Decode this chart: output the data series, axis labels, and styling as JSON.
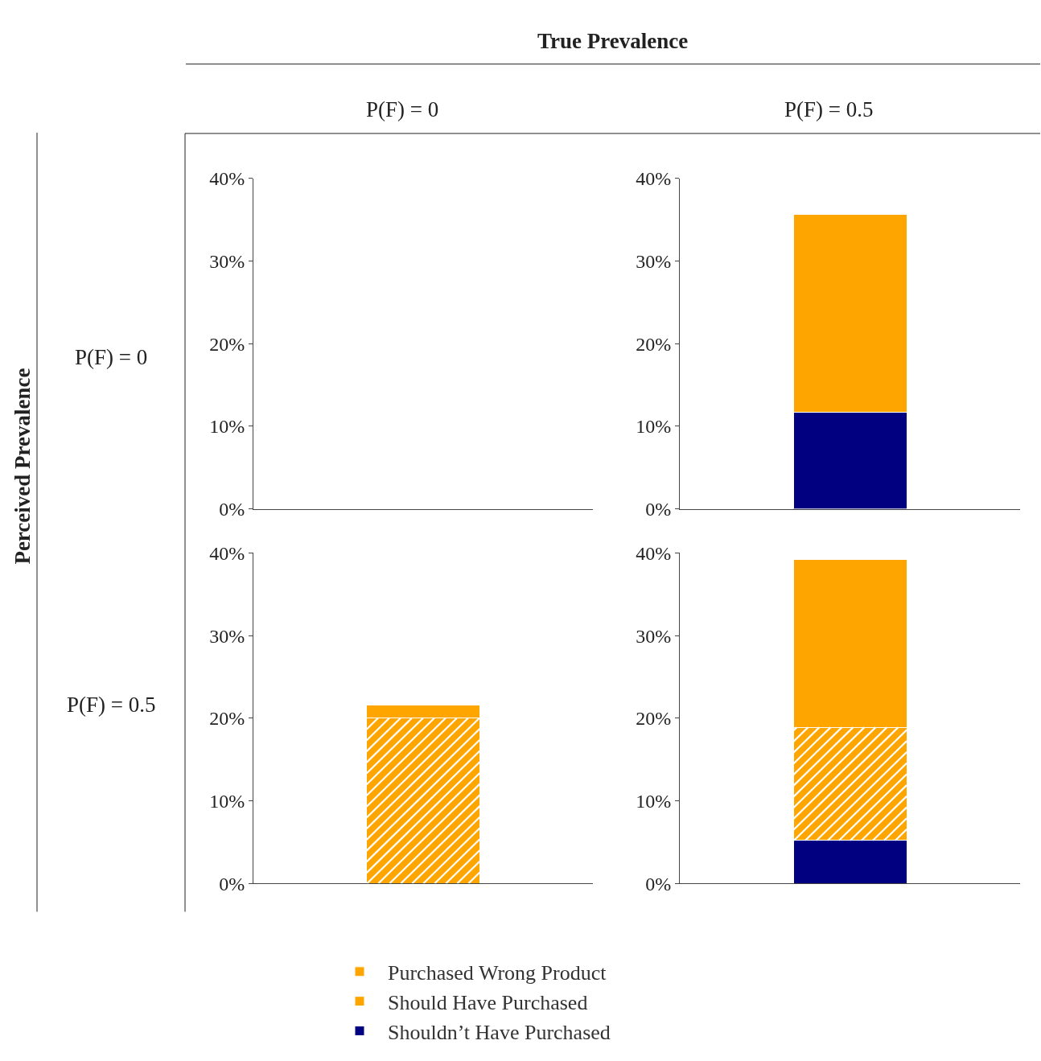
{
  "chart_data": [
    {
      "type": "bar",
      "stacked": true,
      "title": "P(F) = 0",
      "ylabel": "P(F) = 0",
      "categories": [
        null
      ],
      "ylim": [
        0,
        40
      ],
      "yticks": [
        {
          "value": 0,
          "label": "0%"
        },
        {
          "value": 10,
          "label": "10%"
        },
        {
          "value": 20,
          "label": "20%"
        },
        {
          "value": 30,
          "label": "30%"
        },
        {
          "value": 40,
          "label": "40%"
        }
      ],
      "tick_labels": "y",
      "annotations": [
        "True Prevalence",
        "Perceived Prevalence"
      ],
      "series": [
        {
          "color": "#000080",
          "values": [
            null
          ]
        },
        {
          "color": "#ffa500",
          "values": [
            null
          ]
        },
        {
          "color": "#ffa500",
          "values": [
            null
          ]
        }
      ]
    },
    {
      "type": "bar",
      "stacked": true,
      "title": "P(F) = 0.5",
      "categories": [
        null
      ],
      "ylim": [
        0,
        40
      ],
      "yticks": [
        {
          "value": 0,
          "label": "0%"
        },
        {
          "value": 10,
          "label": "10%"
        },
        {
          "value": 20,
          "label": "20%"
        },
        {
          "value": 30,
          "label": "30%"
        },
        {
          "value": 40,
          "label": "40%"
        }
      ],
      "tick_labels": "y",
      "series": [
        {
          "color": "#000080",
          "values": [
            11.7
          ]
        },
        {
          "color": "#ffa500",
          "values": [
            null
          ]
        },
        {
          "color": "#ffa500",
          "values": [
            23.9
          ]
        }
      ]
    },
    {
      "type": "bar",
      "stacked": true,
      "ylabel": "P(F) = 0.5",
      "categories": [
        null
      ],
      "ylim": [
        0,
        40
      ],
      "yticks": [
        {
          "value": 0,
          "label": "0%"
        },
        {
          "value": 10,
          "label": "10%"
        },
        {
          "value": 20,
          "label": "20%"
        },
        {
          "value": 30,
          "label": "30%"
        },
        {
          "value": 40,
          "label": "40%"
        }
      ],
      "tick_labels": "y",
      "legend": "bottom",
      "series": [
        {
          "name": "Shouldn’t Have Purchased",
          "color": "#000080",
          "values": [
            null
          ]
        },
        {
          "name": "Should Have Purchased",
          "color": "#ffa500",
          "values": [
            20.0
          ]
        },
        {
          "name": "Purchased Wrong Product",
          "color": "#ffa500",
          "values": [
            1.6
          ]
        }
      ]
    },
    {
      "type": "bar",
      "stacked": true,
      "categories": [
        null
      ],
      "ylim": [
        0,
        40
      ],
      "yticks": [
        {
          "value": 0,
          "label": "0%"
        },
        {
          "value": 10,
          "label": "10%"
        },
        {
          "value": 20,
          "label": "20%"
        },
        {
          "value": 30,
          "label": "30%"
        },
        {
          "value": 40,
          "label": "40%"
        }
      ],
      "tick_labels": "y",
      "series": [
        {
          "color": "#000080",
          "values": [
            5.2
          ]
        },
        {
          "color": "#ffa500",
          "values": [
            13.7
          ]
        },
        {
          "color": "#ffa500",
          "values": [
            20.3
          ]
        }
      ]
    }
  ]
}
